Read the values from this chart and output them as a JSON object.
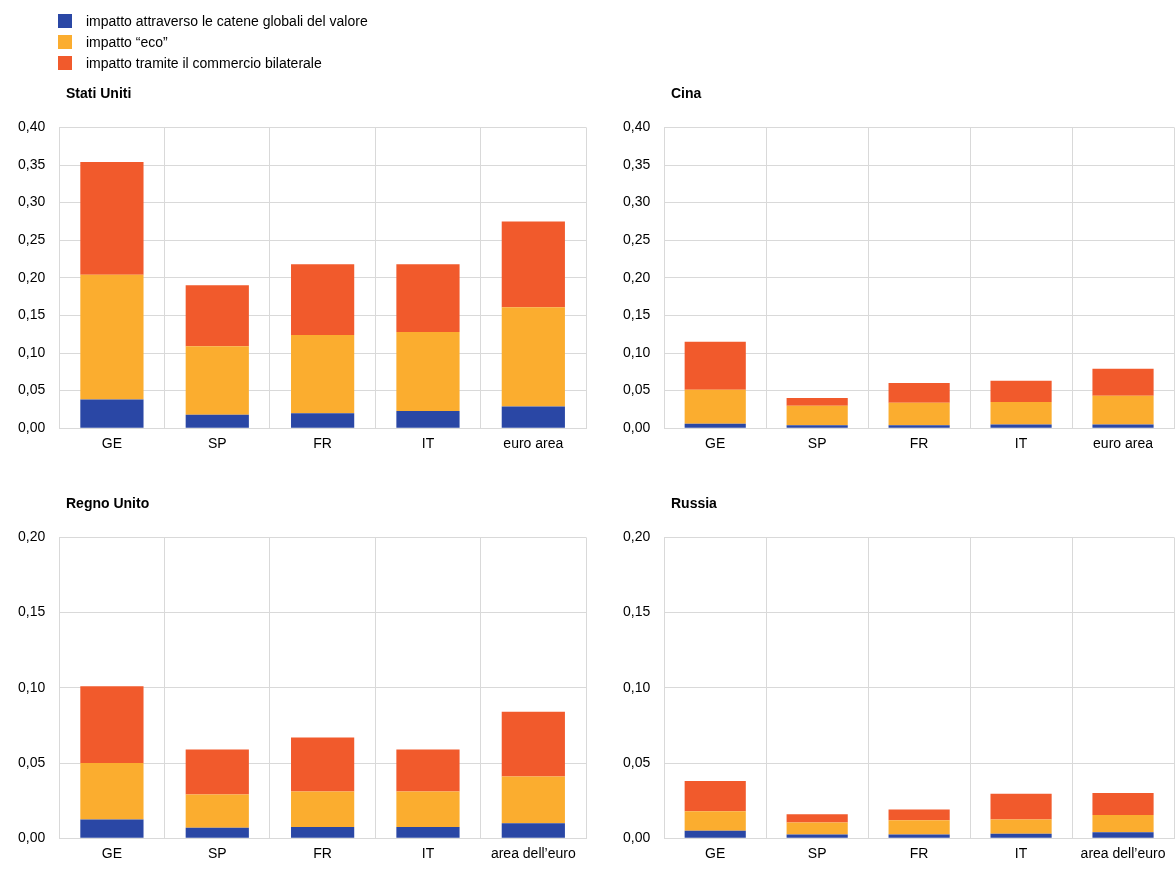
{
  "chart_data": [
    {
      "type": "bar",
      "title": "Stati Uniti",
      "stacked": true,
      "grid": true,
      "legend": "top left",
      "categories": [
        "GE",
        "SP",
        "FR",
        "IT",
        "euro area"
      ],
      "ylim": [
        0,
        0.4
      ],
      "yticks": [
        {
          "value": 0,
          "label": "0,00"
        },
        {
          "value": 0.05,
          "label": "0,05"
        },
        {
          "value": 0.1,
          "label": "0,10"
        },
        {
          "value": 0.15,
          "label": "0,15"
        },
        {
          "value": 0.2,
          "label": "0,20"
        },
        {
          "value": 0.25,
          "label": "0,25"
        },
        {
          "value": 0.3,
          "label": "0,30"
        },
        {
          "value": 0.35,
          "label": "0,35"
        },
        {
          "value": 0.4,
          "label": "0,40"
        }
      ],
      "series": [
        {
          "name": "impatto attraverso le catene globali del valore",
          "color": "#2a47a5",
          "values": [
            0.038,
            0.018,
            0.02,
            0.023,
            0.029
          ]
        },
        {
          "name": "impatto “eco”",
          "color": "#fbad2f",
          "values": [
            0.166,
            0.091,
            0.104,
            0.105,
            0.132
          ]
        },
        {
          "name": "impatto tramite il commercio bilaterale",
          "color": "#f15a2c",
          "values": [
            0.15,
            0.081,
            0.094,
            0.09,
            0.114
          ]
        }
      ]
    },
    {
      "type": "bar",
      "title": "Cina",
      "stacked": true,
      "grid": true,
      "categories": [
        "GE",
        "SP",
        "FR",
        "IT",
        "euro area"
      ],
      "ylim": [
        0,
        0.4
      ],
      "yticks": [
        {
          "value": 0,
          "label": "0,00"
        },
        {
          "value": 0.05,
          "label": "0,05"
        },
        {
          "value": 0.1,
          "label": "0,10"
        },
        {
          "value": 0.15,
          "label": "0,15"
        },
        {
          "value": 0.2,
          "label": "0,20"
        },
        {
          "value": 0.25,
          "label": "0,25"
        },
        {
          "value": 0.3,
          "label": "0,30"
        },
        {
          "value": 0.35,
          "label": "0,35"
        },
        {
          "value": 0.4,
          "label": "0,40"
        }
      ],
      "series": [
        {
          "color": "#2a47a5",
          "values": [
            0.006,
            0.004,
            0.004,
            0.005,
            0.005
          ]
        },
        {
          "color": "#fbad2f",
          "values": [
            0.045,
            0.026,
            0.03,
            0.03,
            0.038
          ]
        },
        {
          "color": "#f15a2c",
          "values": [
            0.064,
            0.01,
            0.026,
            0.028,
            0.036
          ]
        }
      ]
    },
    {
      "type": "bar",
      "title": "Regno Unito",
      "stacked": true,
      "grid": true,
      "categories": [
        "GE",
        "SP",
        "FR",
        "IT",
        "area dell’euro"
      ],
      "ylim": [
        0,
        0.2
      ],
      "yticks": [
        {
          "value": 0,
          "label": "0,00"
        },
        {
          "value": 0.05,
          "label": "0,05"
        },
        {
          "value": 0.1,
          "label": "0,10"
        },
        {
          "value": 0.15,
          "label": "0,15"
        },
        {
          "value": 0.2,
          "label": "0,20"
        }
      ],
      "series": [
        {
          "color": "#2a47a5",
          "values": [
            0.0125,
            0.007,
            0.0075,
            0.0075,
            0.01
          ]
        },
        {
          "color": "#fbad2f",
          "values": [
            0.0375,
            0.022,
            0.0235,
            0.0235,
            0.031
          ]
        },
        {
          "color": "#f15a2c",
          "values": [
            0.051,
            0.03,
            0.036,
            0.028,
            0.043
          ]
        }
      ]
    },
    {
      "type": "bar",
      "title": "Russia",
      "stacked": true,
      "grid": true,
      "categories": [
        "GE",
        "SP",
        "FR",
        "IT",
        "area dell’euro"
      ],
      "ylim": [
        0,
        0.2
      ],
      "yticks": [
        {
          "value": 0,
          "label": "0,00"
        },
        {
          "value": 0.05,
          "label": "0,05"
        },
        {
          "value": 0.1,
          "label": "0,10"
        },
        {
          "value": 0.15,
          "label": "0,15"
        },
        {
          "value": 0.2,
          "label": "0,20"
        }
      ],
      "series": [
        {
          "color": "#2a47a5",
          "values": [
            0.005,
            0.0025,
            0.0025,
            0.003,
            0.004
          ]
        },
        {
          "color": "#fbad2f",
          "values": [
            0.013,
            0.008,
            0.0095,
            0.0095,
            0.0115
          ]
        },
        {
          "color": "#f15a2c",
          "values": [
            0.02,
            0.0055,
            0.007,
            0.017,
            0.0145
          ]
        }
      ]
    }
  ]
}
